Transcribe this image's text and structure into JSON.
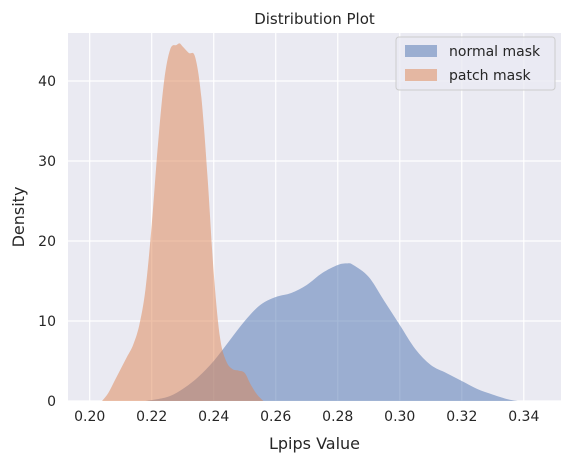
{
  "chart_data": {
    "type": "area",
    "title": "Distribution Plot",
    "xlabel": "Lpips Value",
    "ylabel": "Density",
    "xlim": [
      0.193,
      0.352
    ],
    "ylim": [
      0,
      46
    ],
    "xticks": [
      "0.20",
      "0.22",
      "0.24",
      "0.26",
      "0.28",
      "0.30",
      "0.32",
      "0.34"
    ],
    "yticks": [
      "0",
      "10",
      "20",
      "30",
      "40"
    ],
    "xtick_values": [
      0.2,
      0.22,
      0.24,
      0.26,
      0.28,
      0.3,
      0.32,
      0.34
    ],
    "ytick_values": [
      0,
      10,
      20,
      30,
      40
    ],
    "grid": true,
    "legend": "top-right",
    "series": [
      {
        "name": "normal mask",
        "color": "#4c72b0",
        "opacity": 0.5,
        "x": [
          0.218,
          0.225,
          0.23,
          0.235,
          0.24,
          0.245,
          0.25,
          0.255,
          0.26,
          0.265,
          0.27,
          0.275,
          0.28,
          0.283,
          0.285,
          0.29,
          0.295,
          0.3,
          0.305,
          0.31,
          0.315,
          0.32,
          0.325,
          0.33,
          0.335,
          0.338
        ],
        "y": [
          0.0,
          0.5,
          1.5,
          3.0,
          5.0,
          7.5,
          10.0,
          12.0,
          13.0,
          13.5,
          14.5,
          16.0,
          17.0,
          17.2,
          17.0,
          15.5,
          12.5,
          9.5,
          6.5,
          4.5,
          3.5,
          2.5,
          1.5,
          0.8,
          0.2,
          0.0
        ]
      },
      {
        "name": "patch mask",
        "color": "#dd8452",
        "opacity": 0.5,
        "x": [
          0.204,
          0.206,
          0.208,
          0.21,
          0.212,
          0.214,
          0.216,
          0.218,
          0.22,
          0.222,
          0.224,
          0.226,
          0.228,
          0.229,
          0.23,
          0.232,
          0.234,
          0.236,
          0.238,
          0.24,
          0.242,
          0.244,
          0.246,
          0.248,
          0.25,
          0.252,
          0.254,
          0.256
        ],
        "y": [
          0.0,
          1.0,
          2.5,
          4.0,
          5.5,
          7.0,
          9.5,
          14.0,
          22.0,
          32.0,
          40.0,
          44.0,
          44.5,
          44.7,
          44.3,
          43.5,
          43.0,
          38.0,
          28.0,
          16.0,
          8.0,
          5.0,
          4.0,
          3.8,
          3.5,
          2.0,
          0.8,
          0.0
        ]
      }
    ]
  }
}
